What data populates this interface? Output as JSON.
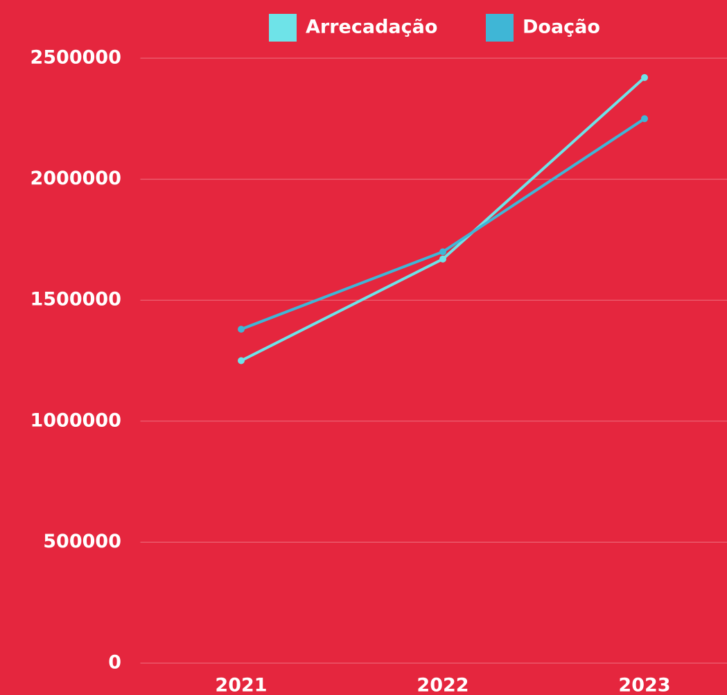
{
  "chart_data": {
    "type": "line",
    "categories": [
      "2021",
      "2022",
      "2023"
    ],
    "series": [
      {
        "name": "Arrecadação",
        "color": "#6ee3e8",
        "values": [
          1250000,
          1670000,
          2420000
        ]
      },
      {
        "name": "Doação",
        "color": "#3fb6d6",
        "values": [
          1380000,
          1700000,
          2250000
        ]
      }
    ],
    "ylim": [
      0,
      2500000
    ],
    "yticks": [
      0,
      500000,
      1000000,
      1500000,
      2000000,
      2500000
    ],
    "grid": true,
    "legend": "top"
  }
}
